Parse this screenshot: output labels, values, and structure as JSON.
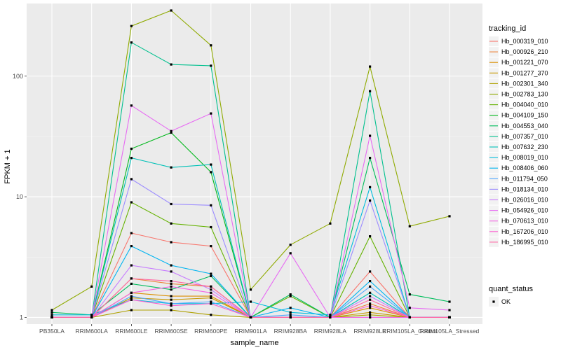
{
  "chart_data": {
    "type": "line",
    "xlabel": "sample_name",
    "ylabel": "FPKM + 1",
    "y_scale": "log10",
    "categories": [
      "PB350LA",
      "RRIM600LA",
      "RRIM600LE",
      "RRIM600SE",
      "RRIM600PE",
      "RRIM901LA",
      "RRIM928BA",
      "RRIM928LA",
      "RRIM928LE",
      "RRIM105LA_Control",
      "RRIM105LA_Stressed"
    ],
    "y_ticks": [
      1,
      10,
      100
    ],
    "y_tick_labels": [
      "1",
      "10",
      "100"
    ],
    "legend": {
      "title": "tracking_id",
      "position": "right"
    },
    "shape_legend": {
      "title": "quant_status",
      "entries": [
        "OK"
      ]
    },
    "series": [
      {
        "name": "Hb_000319_010",
        "color": "#F8766D",
        "values": [
          1.0,
          1.0,
          5.0,
          4.2,
          3.9,
          1.0,
          1.0,
          1.0,
          2.4,
          1.0,
          1.0
        ]
      },
      {
        "name": "Hb_000926_210",
        "color": "#EC8239",
        "values": [
          1.0,
          1.0,
          2.1,
          1.9,
          1.8,
          1.0,
          1.0,
          1.0,
          1.3,
          1.0,
          1.0
        ]
      },
      {
        "name": "Hb_001221_070",
        "color": "#DB8E00",
        "values": [
          1.0,
          1.0,
          1.6,
          1.5,
          1.5,
          1.0,
          1.0,
          1.0,
          1.2,
          1.0,
          1.0
        ]
      },
      {
        "name": "Hb_001277_370",
        "color": "#C79800",
        "values": [
          1.0,
          1.0,
          1.45,
          1.4,
          1.45,
          1.0,
          1.0,
          1.0,
          1.1,
          1.0,
          1.0
        ]
      },
      {
        "name": "Hb_002301_340",
        "color": "#AFA100",
        "values": [
          1.0,
          1.0,
          1.15,
          1.15,
          1.05,
          1.0,
          1.0,
          1.0,
          1.05,
          1.0,
          1.0
        ]
      },
      {
        "name": "Hb_002783_130",
        "color": "#8FAA00",
        "values": [
          1.15,
          1.8,
          260,
          350,
          180,
          1.7,
          4.0,
          6.0,
          120,
          5.7,
          6.9
        ]
      },
      {
        "name": "Hb_004040_010",
        "color": "#64B200",
        "values": [
          1.0,
          1.0,
          9.0,
          6.0,
          5.6,
          1.0,
          1.5,
          1.0,
          4.7,
          1.0,
          1.0
        ]
      },
      {
        "name": "Hb_004109_150",
        "color": "#00B81B",
        "values": [
          1.0,
          1.0,
          25,
          34,
          16,
          1.0,
          1.0,
          1.0,
          1.0,
          1.0,
          1.0
        ]
      },
      {
        "name": "Hb_004553_040",
        "color": "#00BD5C",
        "values": [
          1.1,
          1.05,
          1.9,
          1.7,
          2.2,
          1.0,
          1.55,
          1.0,
          21,
          1.55,
          1.35
        ]
      },
      {
        "name": "Hb_007357_010",
        "color": "#00C08E",
        "values": [
          1.0,
          1.0,
          190,
          125,
          122,
          1.0,
          1.0,
          1.0,
          75,
          1.0,
          1.0
        ]
      },
      {
        "name": "Hb_007632_230",
        "color": "#00C1B7",
        "values": [
          1.0,
          1.0,
          21,
          17.5,
          18.5,
          1.0,
          1.0,
          1.0,
          1.6,
          1.0,
          1.0
        ]
      },
      {
        "name": "Hb_008019_010",
        "color": "#00BDDC",
        "values": [
          1.05,
          1.05,
          1.4,
          1.3,
          1.3,
          1.35,
          1.1,
          1.05,
          12,
          1.0,
          1.0
        ]
      },
      {
        "name": "Hb_008406_060",
        "color": "#00B4F0",
        "values": [
          1.0,
          1.0,
          3.9,
          2.7,
          2.3,
          1.0,
          1.2,
          1.0,
          2.0,
          1.0,
          1.0
        ]
      },
      {
        "name": "Hb_011794_050",
        "color": "#4FA7FF",
        "values": [
          1.0,
          1.0,
          1.5,
          1.3,
          1.35,
          1.0,
          1.05,
          1.0,
          1.8,
          1.0,
          1.0
        ]
      },
      {
        "name": "Hb_018134_010",
        "color": "#9C8CFF",
        "values": [
          1.0,
          1.0,
          14,
          8.7,
          8.5,
          1.0,
          1.0,
          1.0,
          9.3,
          1.0,
          1.0
        ]
      },
      {
        "name": "Hb_026016_010",
        "color": "#C77CFF",
        "values": [
          1.0,
          1.0,
          2.7,
          2.4,
          1.7,
          1.0,
          1.0,
          1.0,
          1.5,
          1.0,
          1.0
        ]
      },
      {
        "name": "Hb_054926_010",
        "color": "#E76BF3",
        "values": [
          1.0,
          1.0,
          57,
          35,
          49,
          1.0,
          3.4,
          1.0,
          32,
          1.2,
          1.15
        ]
      },
      {
        "name": "Hb_070613_010",
        "color": "#F564E3",
        "values": [
          1.0,
          1.0,
          1.6,
          1.8,
          1.6,
          1.0,
          1.0,
          1.0,
          1.0,
          1.0,
          1.0
        ]
      },
      {
        "name": "Hb_167206_010",
        "color": "#FD61D1",
        "values": [
          1.0,
          1.0,
          1.4,
          1.25,
          1.3,
          1.0,
          1.0,
          1.0,
          1.25,
          1.0,
          1.0
        ]
      },
      {
        "name": "Hb_186995_010",
        "color": "#FF67A4",
        "values": [
          1.0,
          1.0,
          2.1,
          2.0,
          1.8,
          1.0,
          1.0,
          1.0,
          1.4,
          1.0,
          1.0
        ]
      }
    ]
  }
}
